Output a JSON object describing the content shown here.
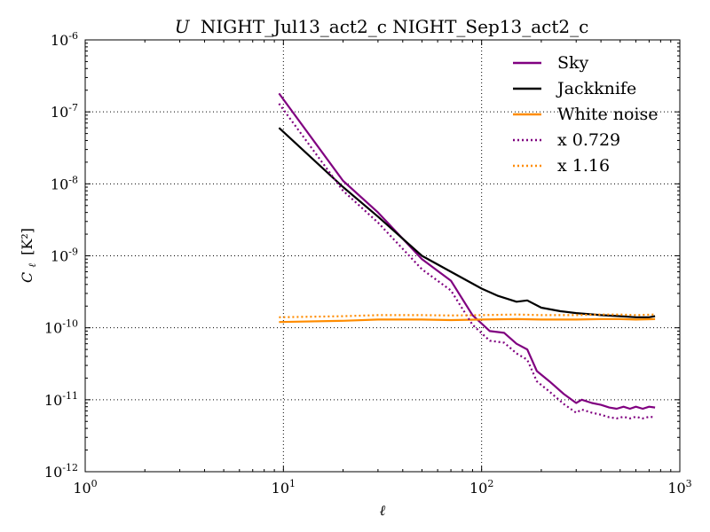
{
  "chart_data": {
    "type": "line",
    "title_prefix": "U",
    "title_rest": "NIGHT_Jul13_act2_c NIGHT_Sep13_act2_c",
    "xlabel": "ℓ",
    "ylabel_main": "C",
    "ylabel_sub": "ℓ",
    "ylabel_unit": "[K²]",
    "x_scale": "log",
    "y_scale": "log",
    "xlim": [
      1,
      1000
    ],
    "ylim": [
      1e-12,
      1e-06
    ],
    "x_ticks": [
      {
        "value": 1,
        "base": "10",
        "exp": "0"
      },
      {
        "value": 10,
        "base": "10",
        "exp": "1"
      },
      {
        "value": 100,
        "base": "10",
        "exp": "2"
      },
      {
        "value": 1000,
        "base": "10",
        "exp": "3"
      }
    ],
    "y_ticks": [
      {
        "value": 1e-12,
        "base": "10",
        "exp": "-12"
      },
      {
        "value": 1e-11,
        "base": "10",
        "exp": "-11"
      },
      {
        "value": 1e-10,
        "base": "10",
        "exp": "-10"
      },
      {
        "value": 1e-09,
        "base": "10",
        "exp": "-9"
      },
      {
        "value": 1e-08,
        "base": "10",
        "exp": "-8"
      },
      {
        "value": 1e-07,
        "base": "10",
        "exp": "-7"
      },
      {
        "value": 1e-06,
        "base": "10",
        "exp": "-6"
      }
    ],
    "grid": true,
    "legend_position": "top-right",
    "series": [
      {
        "name": "Sky",
        "color": "#800080",
        "style": "solid",
        "x": [
          9.5,
          20,
          30,
          50,
          70,
          90,
          110,
          130,
          150,
          170,
          190,
          220,
          260,
          300,
          320,
          360,
          400,
          440,
          480,
          520,
          560,
          600,
          650,
          700,
          750
        ],
        "y": [
          1.8e-07,
          1.1e-08,
          4e-09,
          9e-10,
          4.5e-10,
          1.5e-10,
          9e-11,
          8.5e-11,
          6e-11,
          5e-11,
          2.5e-11,
          1.8e-11,
          1.2e-11,
          9e-12,
          1e-11,
          9e-12,
          8.5e-12,
          7.8e-12,
          7.5e-12,
          8e-12,
          7.5e-12,
          8e-12,
          7.5e-12,
          8e-12,
          7.8e-12
        ]
      },
      {
        "name": "Jackknife",
        "color": "#000000",
        "style": "solid",
        "x": [
          9.5,
          20,
          30,
          50,
          70,
          100,
          120,
          150,
          170,
          200,
          250,
          300,
          400,
          500,
          600,
          700,
          750
        ],
        "y": [
          6e-08,
          9e-09,
          3.5e-09,
          1e-09,
          6e-10,
          3.5e-10,
          2.8e-10,
          2.3e-10,
          2.4e-10,
          1.9e-10,
          1.7e-10,
          1.6e-10,
          1.5e-10,
          1.45e-10,
          1.4e-10,
          1.4e-10,
          1.45e-10
        ]
      },
      {
        "name": "White noise",
        "color": "#ff8c00",
        "style": "solid",
        "x": [
          9.5,
          20,
          30,
          50,
          70,
          100,
          150,
          200,
          300,
          400,
          500,
          600,
          750
        ],
        "y": [
          1.2e-10,
          1.25e-10,
          1.3e-10,
          1.3e-10,
          1.28e-10,
          1.3e-10,
          1.32e-10,
          1.3e-10,
          1.3e-10,
          1.32e-10,
          1.32e-10,
          1.3e-10,
          1.32e-10
        ]
      },
      {
        "name": "x 0.729",
        "color": "#800080",
        "style": "dotted",
        "x": [
          9.5,
          20,
          30,
          50,
          70,
          90,
          110,
          130,
          150,
          170,
          190,
          220,
          260,
          300,
          320,
          360,
          400,
          440,
          480,
          520,
          560,
          600,
          650,
          700,
          750
        ],
        "y": [
          1.3e-07,
          8e-09,
          2.9e-09,
          6.5e-10,
          3.3e-10,
          1.1e-10,
          6.6e-11,
          6.2e-11,
          4.4e-11,
          3.6e-11,
          1.8e-11,
          1.3e-11,
          8.7e-12,
          6.6e-12,
          7.3e-12,
          6.6e-12,
          6.2e-12,
          5.7e-12,
          5.5e-12,
          5.8e-12,
          5.5e-12,
          5.8e-12,
          5.5e-12,
          5.8e-12,
          5.7e-12
        ]
      },
      {
        "name": "x 1.16",
        "color": "#ff8c00",
        "style": "dotted",
        "x": [
          9.5,
          20,
          30,
          50,
          70,
          100,
          150,
          200,
          300,
          400,
          500,
          600,
          750
        ],
        "y": [
          1.4e-10,
          1.45e-10,
          1.5e-10,
          1.5e-10,
          1.48e-10,
          1.5e-10,
          1.53e-10,
          1.5e-10,
          1.5e-10,
          1.53e-10,
          1.53e-10,
          1.5e-10,
          1.53e-10
        ]
      }
    ]
  }
}
